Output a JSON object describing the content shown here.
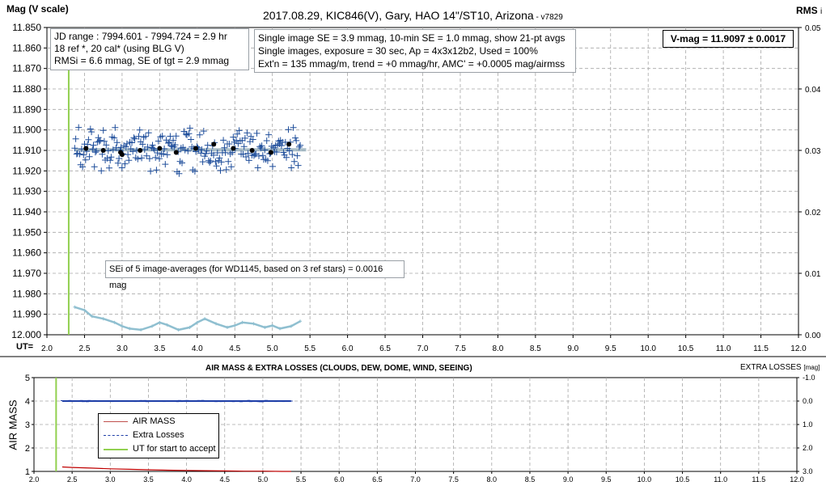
{
  "header": {
    "y_axis_title": "Mag (V scale)",
    "title": "2017.08.29,  KIC846(V),  Gary,  HAO  14\"/ST10,  Arizona",
    "version": " - v7829",
    "rms_label": "RMS",
    "rms_suffix": "i"
  },
  "info_left": [
    "JD range : 7994.601 - 7994.724 =  2.9  hr",
    "18 ref *, 20 cal* (using BLG V)",
    "RMSi = 6.6 mmag, SE of tgt = 2.9 mmag"
  ],
  "info_mid": [
    "Single image SE = 3.9 mmag, 10-min SE = 1.0 mmag, show 21-pt avgs",
    "Single images, exposure = 30 sec, Ap = 4x3x12b2, Used = 100%",
    "Ext'n = 135 mmag/m, trend = +0 mmag/hr, AMC' = +0.0005 mag/airmss"
  ],
  "vmag_box": "V-mag = 11.9097 ± 0.0017",
  "se_box": "SEi of 5 image-averages (for WD1145, based on 3 ref stars) = 0.0016 mag",
  "ut_axis_label": "UT=",
  "lower": {
    "title": "AIR MASS & EXTRA LOSSES (CLOUDS, DEW, DOME, WIND, SEEING)",
    "y_axis_title": "AIR MASS",
    "right_label": "EXTRA LOSSES",
    "right_unit": "[mag]",
    "legend": [
      {
        "label": "AIR MASS",
        "color": "#c0504d",
        "style": "solid"
      },
      {
        "label": "Extra Losses",
        "color": "#1f3fa8",
        "style": "dashed"
      },
      {
        "label": "UT for start to accept",
        "color": "#92d050",
        "style": "solid"
      }
    ]
  },
  "colors": {
    "target": "#1f4e9b",
    "average": "#000000",
    "trend": "#8faab8",
    "rms": "#8fbfd0",
    "start_line": "#92d050",
    "grid": "#a6a6a6",
    "airmass": "#c00000",
    "extra_losses": "#1f3fa8"
  },
  "chart_data": [
    {
      "type": "scatter",
      "xlabel": "UT=",
      "ylabel": "Mag (V scale)",
      "y2label": "RMS i",
      "xlim": [
        2.0,
        12.0
      ],
      "ylim": [
        11.85,
        12.0
      ],
      "y_reversed": true,
      "y2lim": [
        0.0,
        0.05
      ],
      "grid": true,
      "x_ticks": [
        "2.0",
        "2.5",
        "3.0",
        "3.5",
        "4.0",
        "4.5",
        "5.0",
        "5.5",
        "6.0",
        "6.5",
        "7.0",
        "7.5",
        "8.0",
        "8.5",
        "9.0",
        "9.5",
        "10.0",
        "10.5",
        "11.0",
        "11.5",
        "12.0"
      ],
      "y_ticks": [
        "11.850",
        "11.860",
        "11.870",
        "11.880",
        "11.890",
        "11.900",
        "11.910",
        "11.920",
        "11.930",
        "11.940",
        "11.950",
        "11.960",
        "11.970",
        "11.980",
        "11.990",
        "12.000"
      ],
      "y2_ticks": [
        "0.05",
        "0.04",
        "0.03",
        "0.02",
        "0.01",
        "0.00"
      ],
      "start_ut": 2.29,
      "series": [
        {
          "name": "single-image mags",
          "x_range": [
            2.37,
            5.37
          ],
          "center": 11.9097,
          "spread": 0.0066
        },
        {
          "name": "21-pt averages",
          "x": [
            2.52,
            2.75,
            2.98,
            3.0,
            3.24,
            3.5,
            3.72,
            3.98,
            4.22,
            4.48,
            4.73,
            4.98,
            5.22
          ],
          "y": [
            11.909,
            11.91,
            11.911,
            11.912,
            11.91,
            11.909,
            11.911,
            11.909,
            11.907,
            11.909,
            11.91,
            11.911,
            11.907
          ]
        },
        {
          "name": "trend",
          "x": [
            2.37,
            5.45
          ],
          "y": [
            11.9097,
            11.9097
          ]
        },
        {
          "name": "RMSi",
          "x": [
            2.37,
            2.5,
            2.6,
            2.75,
            2.9,
            3.0,
            3.1,
            3.25,
            3.4,
            3.5,
            3.6,
            3.75,
            3.9,
            4.0,
            4.1,
            4.25,
            4.4,
            4.5,
            4.6,
            4.75,
            4.9,
            5.0,
            5.1,
            5.25,
            5.37
          ],
          "y": [
            0.0045,
            0.004,
            0.003,
            0.0026,
            0.002,
            0.0014,
            0.001,
            0.0008,
            0.0014,
            0.002,
            0.0016,
            0.0008,
            0.0012,
            0.002,
            0.0026,
            0.0018,
            0.0012,
            0.0015,
            0.002,
            0.0018,
            0.0012,
            0.0015,
            0.001,
            0.0014,
            0.0022
          ]
        }
      ]
    },
    {
      "type": "line",
      "title": "AIR MASS & EXTRA LOSSES (CLOUDS, DEW, DOME, WIND, SEEING)",
      "ylabel": "AIR MASS",
      "y2label": "EXTRA LOSSES [mag]",
      "xlim": [
        2.0,
        12.0
      ],
      "ylim": [
        1,
        5
      ],
      "y2lim": [
        -1.0,
        3.0
      ],
      "y2_reversed": true,
      "x_ticks": [
        "2.0",
        "2.5",
        "3.0",
        "3.5",
        "4.0",
        "4.5",
        "5.0",
        "5.5",
        "6.0",
        "6.5",
        "7.0",
        "7.5",
        "8.0",
        "8.5",
        "9.0",
        "9.5",
        "10.0",
        "10.5",
        "11.0",
        "11.5",
        "12.0"
      ],
      "y_ticks": [
        "5",
        "4",
        "3",
        "2",
        "1"
      ],
      "y2_ticks": [
        "-1.0",
        "0.0",
        "1.0",
        "2.0",
        "3.0"
      ],
      "start_ut": 2.29,
      "series": [
        {
          "name": "AIR MASS",
          "x": [
            2.37,
            2.5,
            2.75,
            3.0,
            3.25,
            3.5,
            3.75,
            4.0,
            4.25,
            4.5,
            4.75,
            5.0,
            5.25,
            5.37
          ],
          "y": [
            1.19,
            1.17,
            1.14,
            1.11,
            1.09,
            1.07,
            1.05,
            1.04,
            1.03,
            1.02,
            1.01,
            1.01,
            1.0,
            1.0
          ]
        },
        {
          "name": "Extra Losses",
          "x_range": [
            2.37,
            5.37
          ],
          "y_right": 0.0
        }
      ]
    }
  ]
}
